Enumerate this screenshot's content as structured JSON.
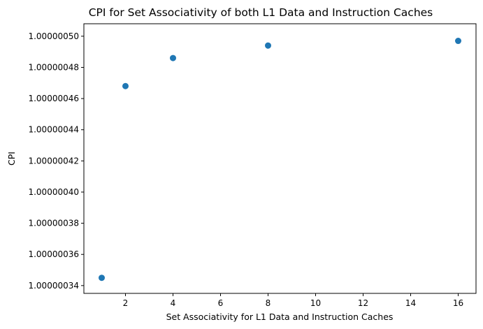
{
  "chart_data": {
    "type": "scatter",
    "title": "CPI for Set Associativity of both L1 Data and Instruction Caches",
    "xlabel": "Set Associativity for L1 Data and Instruction Caches",
    "ylabel": "CPI",
    "xlim": [
      0.25,
      16.75
    ],
    "ylim": [
      1.000000335,
      1.000000508
    ],
    "xticks": [
      2,
      4,
      6,
      8,
      10,
      12,
      14,
      16
    ],
    "yticks": [
      1.00000034,
      1.00000036,
      1.00000038,
      1.0000004,
      1.00000042,
      1.00000044,
      1.00000046,
      1.00000048,
      1.0000005
    ],
    "ytick_labels": [
      "1.00000034",
      "1.00000036",
      "1.00000038",
      "1.00000040",
      "1.00000042",
      "1.00000044",
      "1.00000046",
      "1.00000048",
      "1.00000050"
    ],
    "grid": false,
    "legend": "none",
    "marker_color": "#1f77b4",
    "series": [
      {
        "x": [
          1,
          2,
          4,
          8,
          16
        ],
        "y": [
          1.000000345,
          1.000000468,
          1.000000486,
          1.000000494,
          1.000000497
        ]
      }
    ]
  }
}
